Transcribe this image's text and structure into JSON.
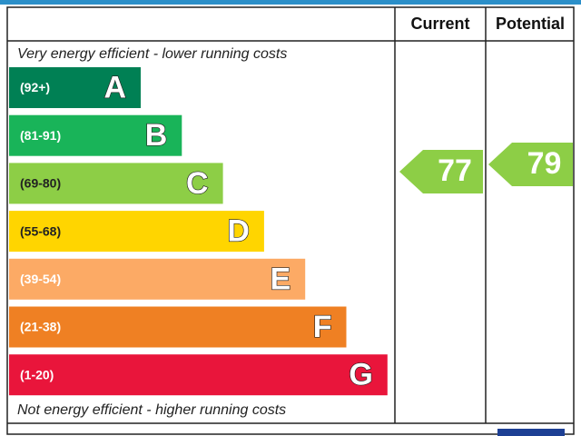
{
  "header": {
    "current": "Current",
    "potential": "Potential"
  },
  "top_note": "Very energy efficient - lower running costs",
  "bottom_note": "Not energy efficient - higher running costs",
  "bands": [
    {
      "range": "(92+)",
      "letter": "A",
      "color": "#008054"
    },
    {
      "range": "(81-91)",
      "letter": "B",
      "color": "#19b459"
    },
    {
      "range": "(69-80)",
      "letter": "C",
      "color": "#8dce46"
    },
    {
      "range": "(55-68)",
      "letter": "D",
      "color": "#ffd500"
    },
    {
      "range": "(39-54)",
      "letter": "E",
      "color": "#fcaa65"
    },
    {
      "range": "(21-38)",
      "letter": "F",
      "color": "#ef8023"
    },
    {
      "range": "(1-20)",
      "letter": "G",
      "color": "#e9153b"
    }
  ],
  "current": {
    "value": 77,
    "color": "#8dce46"
  },
  "potential": {
    "value": 79,
    "color": "#8dce46"
  }
}
